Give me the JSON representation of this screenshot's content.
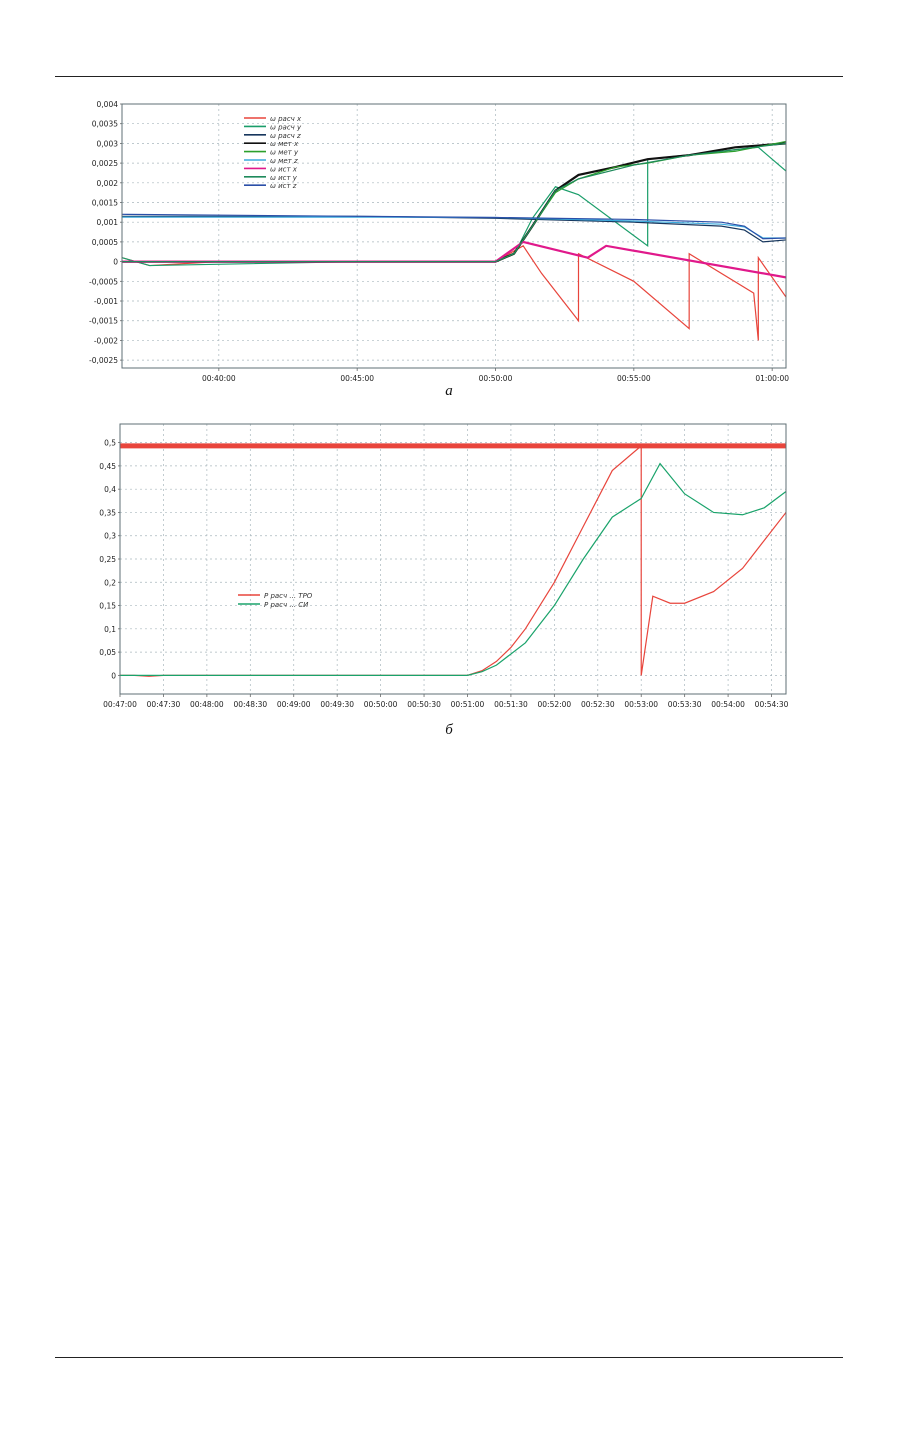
{
  "charts": [
    {
      "caption": "а",
      "chart_data": {
        "type": "line",
        "xlim": [
          2190,
          3630
        ],
        "ylim": [
          -0.0027,
          0.004
        ],
        "xticks": [
          2400,
          2700,
          3000,
          3300,
          3600
        ],
        "xtick_labels": [
          "00:40:00",
          "00:45:00",
          "00:50:00",
          "00:55:00",
          "01:00:00"
        ],
        "yticks": [
          0.004,
          0.0035,
          0.003,
          0.0025,
          0.002,
          0.0015,
          0.001,
          0.0005,
          0,
          -0.0005,
          -0.001,
          -0.0015,
          -0.002,
          -0.0025
        ],
        "ytick_labels": [
          "0,004",
          "0,0035",
          "0,003",
          "0,0025",
          "0,002",
          "0,0015",
          "0,001",
          "0,0005",
          "0",
          "-0,0005",
          "-0,001",
          "-0,0015",
          "-0,002",
          "-0,0025"
        ],
        "grid": true,
        "legend_position": "top-left",
        "series": [
          {
            "name": "ω расч x",
            "color": "#e8453c",
            "points": [
              [
                2190,
                0.0001
              ],
              [
                2250,
                -0.0001
              ],
              [
                2400,
                0
              ],
              [
                2700,
                0
              ],
              [
                3000,
                0
              ],
              [
                3060,
                0.0004
              ],
              [
                3100,
                -0.0003
              ],
              [
                3180,
                -0.0015
              ],
              [
                3180,
                0.0002
              ],
              [
                3300,
                -0.0005
              ],
              [
                3420,
                -0.0017
              ],
              [
                3420,
                0.0002
              ],
              [
                3560,
                -0.0008
              ],
              [
                3570,
                -0.002
              ],
              [
                3570,
                0.0001
              ],
              [
                3630,
                -0.0009
              ]
            ]
          },
          {
            "name": "ω расч y",
            "color": "#1a9e6a",
            "points": [
              [
                2190,
                0.0001
              ],
              [
                2250,
                -0.0001
              ],
              [
                2700,
                0
              ],
              [
                3000,
                0
              ],
              [
                3050,
                0.0004
              ],
              [
                3080,
                0.0011
              ],
              [
                3130,
                0.0019
              ],
              [
                3180,
                0.0017
              ],
              [
                3330,
                0.0004
              ],
              [
                3330,
                0.0026
              ],
              [
                3570,
                0.0029
              ],
              [
                3630,
                0.0023
              ]
            ]
          },
          {
            "name": "ω расч z",
            "color": "#17365d",
            "points": [
              [
                2190,
                0.00115
              ],
              [
                2700,
                0.00115
              ],
              [
                3000,
                0.0011
              ],
              [
                3300,
                0.001
              ],
              [
                3490,
                0.0009
              ],
              [
                3540,
                0.0008
              ],
              [
                3580,
                0.0005
              ],
              [
                3630,
                0.00055
              ]
            ]
          },
          {
            "name": "ω мет x",
            "color": "#111111",
            "points": [
              [
                2190,
                0
              ],
              [
                2700,
                0
              ],
              [
                3000,
                0
              ],
              [
                3040,
                0.0002
              ],
              [
                3080,
                0.0009
              ],
              [
                3130,
                0.0018
              ],
              [
                3180,
                0.0022
              ],
              [
                3260,
                0.0024
              ],
              [
                3330,
                0.0026
              ],
              [
                3420,
                0.0027
              ],
              [
                3520,
                0.0029
              ],
              [
                3630,
                0.003
              ]
            ]
          },
          {
            "name": "ω мет y",
            "color": "#2ca02c",
            "points": [
              [
                2190,
                0
              ],
              [
                2700,
                0
              ],
              [
                3000,
                0
              ],
              [
                3040,
                0.0002
              ],
              [
                3080,
                0.0009
              ],
              [
                3130,
                0.00175
              ],
              [
                3180,
                0.0021
              ],
              [
                3260,
                0.0024
              ],
              [
                3330,
                0.0025
              ],
              [
                3420,
                0.0027
              ],
              [
                3520,
                0.0028
              ],
              [
                3630,
                0.00305
              ]
            ]
          },
          {
            "name": "ω мет z",
            "color": "#39a9dc",
            "points": [
              [
                2190,
                0.00113
              ],
              [
                2700,
                0.00113
              ],
              [
                3000,
                0.00112
              ],
              [
                3300,
                0.00103
              ],
              [
                3490,
                0.00095
              ],
              [
                3540,
                0.00088
              ],
              [
                3580,
                0.0006
              ],
              [
                3630,
                0.0006
              ]
            ]
          },
          {
            "name": "ω ист x",
            "color": "#e0198b",
            "points": [
              [
                2190,
                0
              ],
              [
                2700,
                0
              ],
              [
                3000,
                0
              ],
              [
                3060,
                0.0005
              ],
              [
                3130,
                0.0003
              ],
              [
                3200,
                0.0001
              ],
              [
                3240,
                0.0004
              ],
              [
                3630,
                -0.0004
              ]
            ]
          },
          {
            "name": "ω ист y",
            "color": "#1f8a5c",
            "points": [
              [
                2190,
                0
              ],
              [
                2700,
                0
              ],
              [
                3000,
                0
              ],
              [
                3040,
                0.0002
              ],
              [
                3080,
                0.0009
              ],
              [
                3130,
                0.0018
              ],
              [
                3180,
                0.0021
              ],
              [
                3300,
                0.00245
              ],
              [
                3420,
                0.0027
              ],
              [
                3630,
                0.003
              ]
            ]
          },
          {
            "name": "ω ист z",
            "color": "#2b4fa8",
            "points": [
              [
                2190,
                0.0012
              ],
              [
                2700,
                0.00115
              ],
              [
                3000,
                0.00112
              ],
              [
                3300,
                0.00107
              ],
              [
                3490,
                0.001
              ],
              [
                3540,
                0.0009
              ],
              [
                3580,
                0.00058
              ],
              [
                3630,
                0.0006
              ]
            ]
          }
        ]
      }
    },
    {
      "caption": "б",
      "chart_data": {
        "type": "line",
        "xlim": [
          2820,
          3280
        ],
        "ylim": [
          -0.04,
          0.54
        ],
        "xticks": [
          2820,
          2850,
          2880,
          2910,
          2940,
          2970,
          3000,
          3030,
          3060,
          3090,
          3120,
          3150,
          3180,
          3210,
          3240,
          3270
        ],
        "xtick_labels": [
          "00:47:00",
          "00:47:30",
          "00:48:00",
          "00:48:30",
          "00:49:00",
          "00:49:30",
          "00:50:00",
          "00:50:30",
          "00:51:00",
          "00:51:30",
          "00:52:00",
          "00:52:30",
          "00:53:00",
          "00:53:30",
          "00:54:00",
          "00:54:30"
        ],
        "yticks": [
          0.5,
          0.45,
          0.4,
          0.35,
          0.3,
          0.25,
          0.2,
          0.15,
          0.1,
          0.05,
          0
        ],
        "ytick_labels": [
          "0,5",
          "0,45",
          "0,4",
          "0,35",
          "0,3",
          "0,25",
          "0,2",
          "0,15",
          "0,1",
          "0,05",
          "0"
        ],
        "grid": true,
        "legend_position": "center-left",
        "threshold": {
          "value": 0.493,
          "color": "#e8453c"
        },
        "series": [
          {
            "name": "P расч ... ТРО",
            "color": "#e8453c",
            "points": [
              [
                2820,
                0
              ],
              [
                2830,
                0
              ],
              [
                2840,
                -0.002
              ],
              [
                2850,
                0
              ],
              [
                3060,
                0
              ],
              [
                3070,
                0.01
              ],
              [
                3080,
                0.03
              ],
              [
                3090,
                0.06
              ],
              [
                3100,
                0.1
              ],
              [
                3120,
                0.2
              ],
              [
                3140,
                0.32
              ],
              [
                3160,
                0.44
              ],
              [
                3180,
                0.493
              ],
              [
                3180,
                0
              ],
              [
                3188,
                0.17
              ],
              [
                3200,
                0.155
              ],
              [
                3210,
                0.155
              ],
              [
                3230,
                0.18
              ],
              [
                3250,
                0.23
              ],
              [
                3265,
                0.29
              ],
              [
                3280,
                0.35
              ]
            ]
          },
          {
            "name": "P расч ... СИ",
            "color": "#1aa36b",
            "points": [
              [
                2820,
                0
              ],
              [
                2850,
                0
              ],
              [
                3060,
                0
              ],
              [
                3070,
                0.008
              ],
              [
                3080,
                0.022
              ],
              [
                3100,
                0.07
              ],
              [
                3120,
                0.15
              ],
              [
                3140,
                0.25
              ],
              [
                3160,
                0.34
              ],
              [
                3180,
                0.38
              ],
              [
                3193,
                0.455
              ],
              [
                3210,
                0.39
              ],
              [
                3230,
                0.35
              ],
              [
                3250,
                0.345
              ],
              [
                3265,
                0.36
              ],
              [
                3280,
                0.395
              ]
            ]
          }
        ]
      }
    }
  ]
}
